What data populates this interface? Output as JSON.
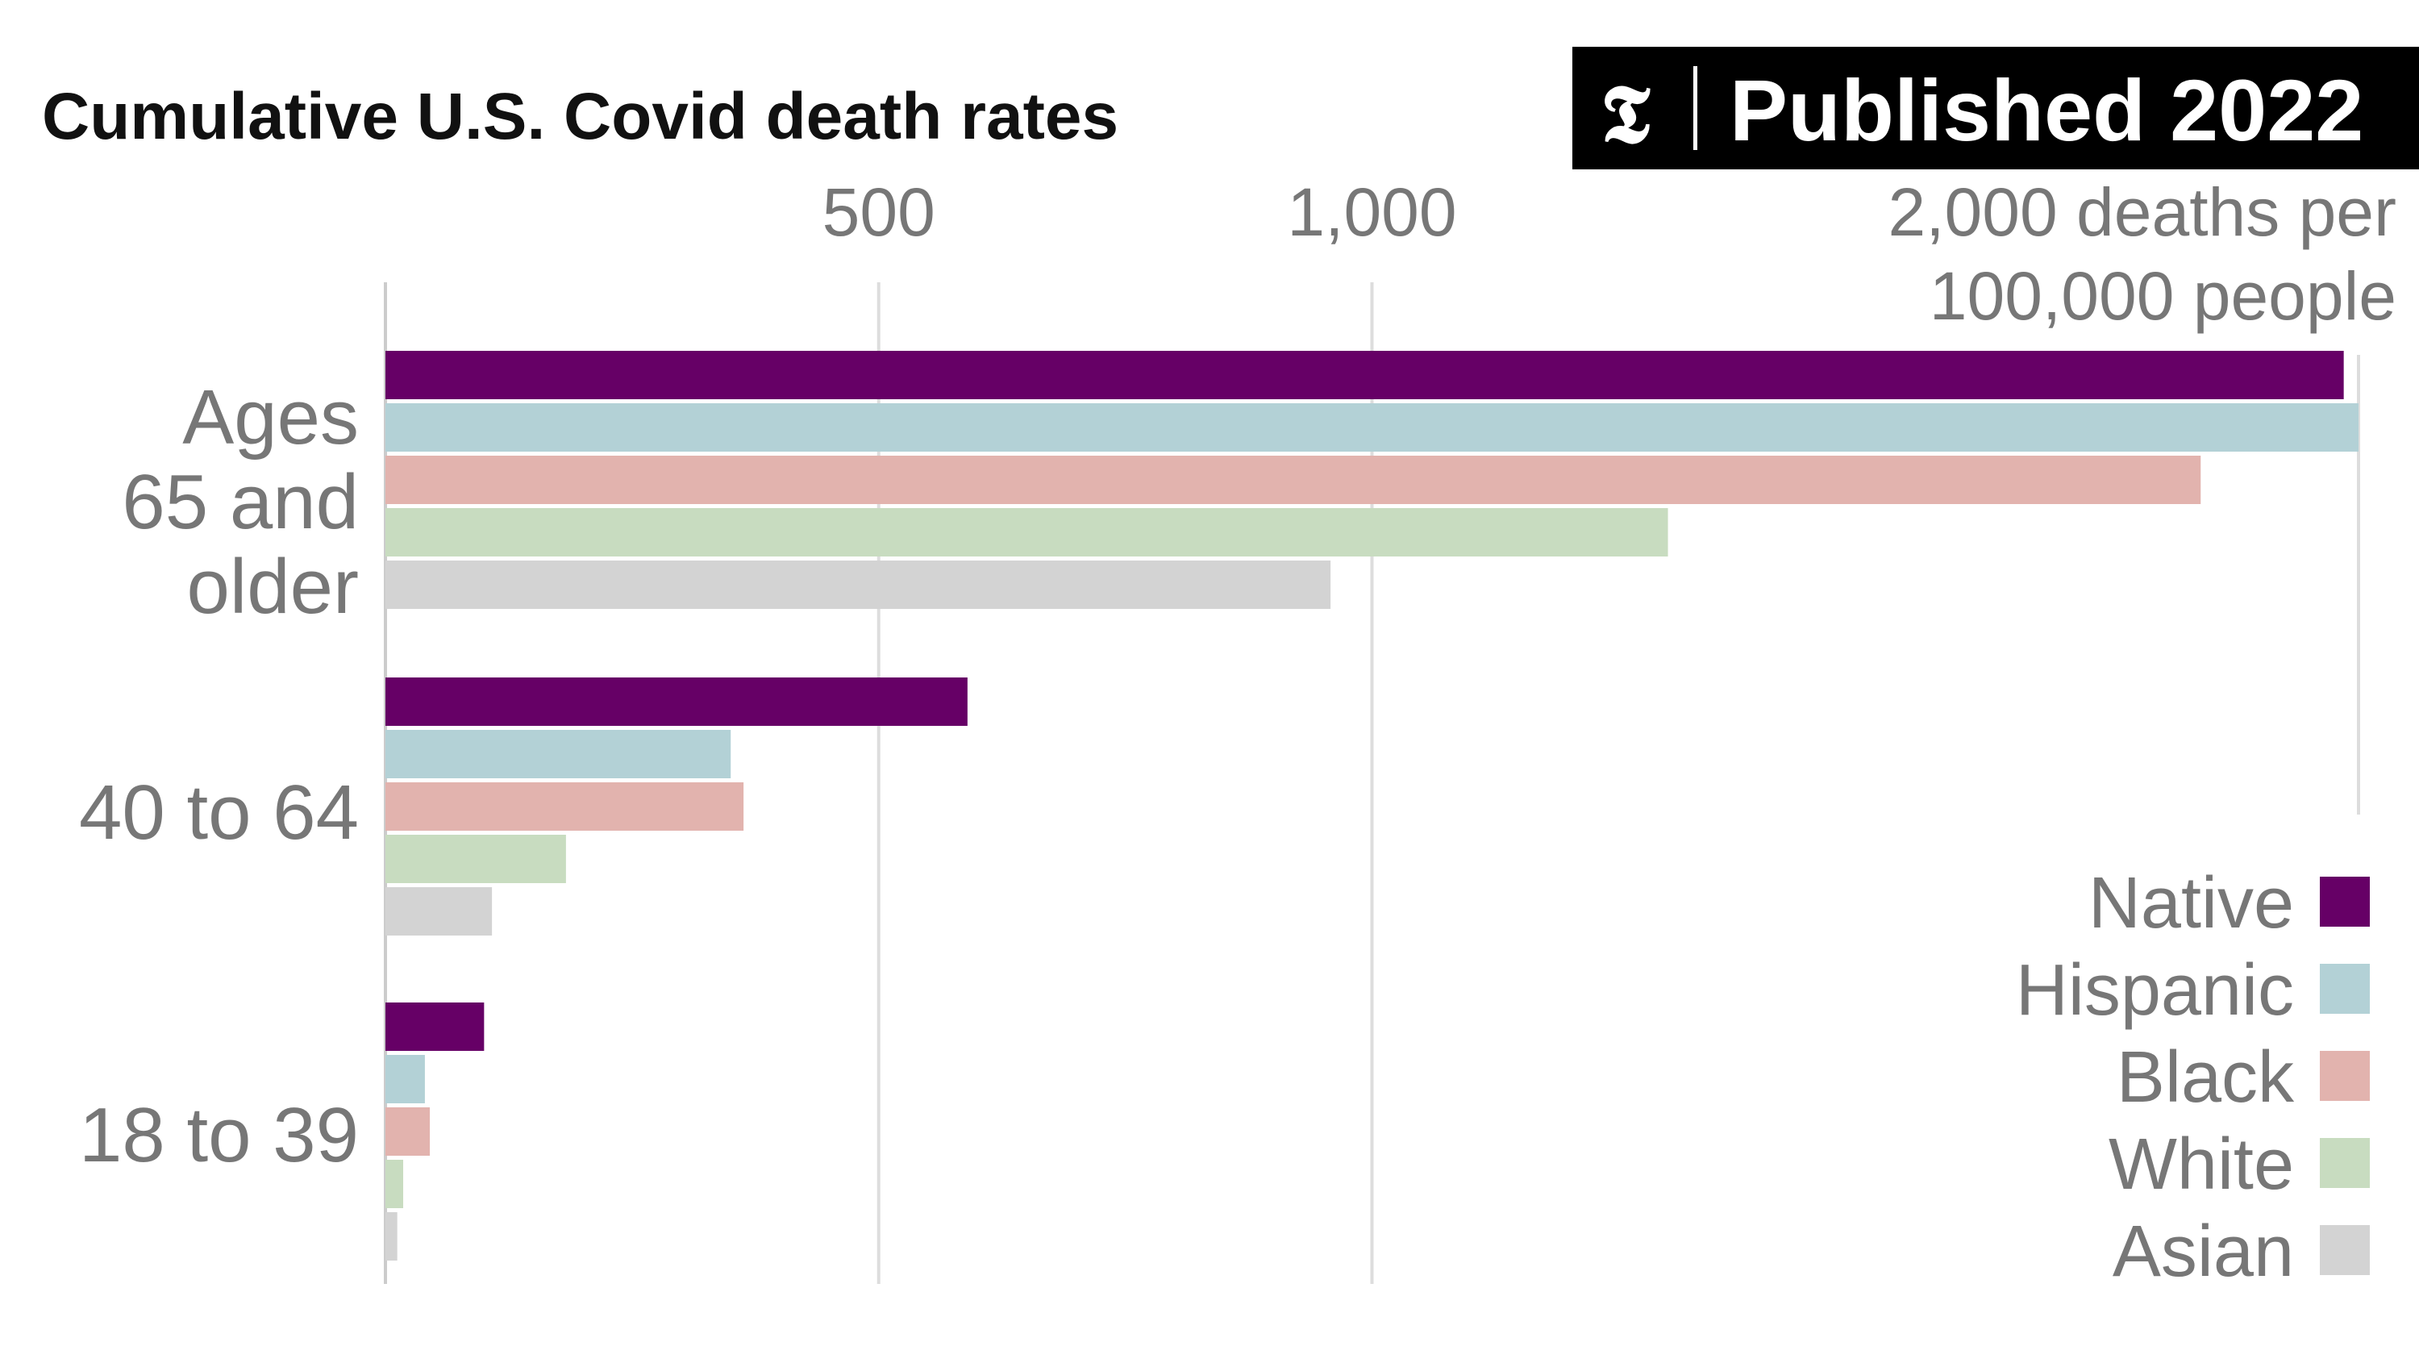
{
  "badge": {
    "logo_glyph": "𝕿",
    "text": "Published 2022"
  },
  "chart_data": {
    "type": "bar",
    "orientation": "horizontal",
    "title": "Cumulative U.S. Covid death rates",
    "xlim": [
      0,
      2000
    ],
    "x_ticks": [
      {
        "value": 500,
        "label": "500"
      },
      {
        "value": 1000,
        "label": "1,000"
      },
      {
        "value": 2000,
        "label": "2,000 deaths per",
        "label_line2": "100,000 people"
      }
    ],
    "grid": true,
    "legend_position": "bottom-right",
    "categories": [
      {
        "label_lines": [
          "Ages",
          "65 and",
          "older"
        ]
      },
      {
        "label_lines": [
          "40 to 64"
        ]
      },
      {
        "label_lines": [
          "18 to 39"
        ]
      }
    ],
    "series": [
      {
        "name": "Native",
        "color": "#660066",
        "values": [
          1985,
          590,
          100
        ]
      },
      {
        "name": "Hispanic",
        "color": "#b3d1d6",
        "values": [
          2000,
          350,
          40
        ]
      },
      {
        "name": "Black",
        "color": "#e2b3ae",
        "values": [
          1840,
          363,
          45
        ]
      },
      {
        "name": "White",
        "color": "#c8dcc0",
        "values": [
          1300,
          183,
          18
        ]
      },
      {
        "name": "Asian",
        "color": "#d3d3d3",
        "values": [
          958,
          108,
          12
        ]
      }
    ]
  }
}
